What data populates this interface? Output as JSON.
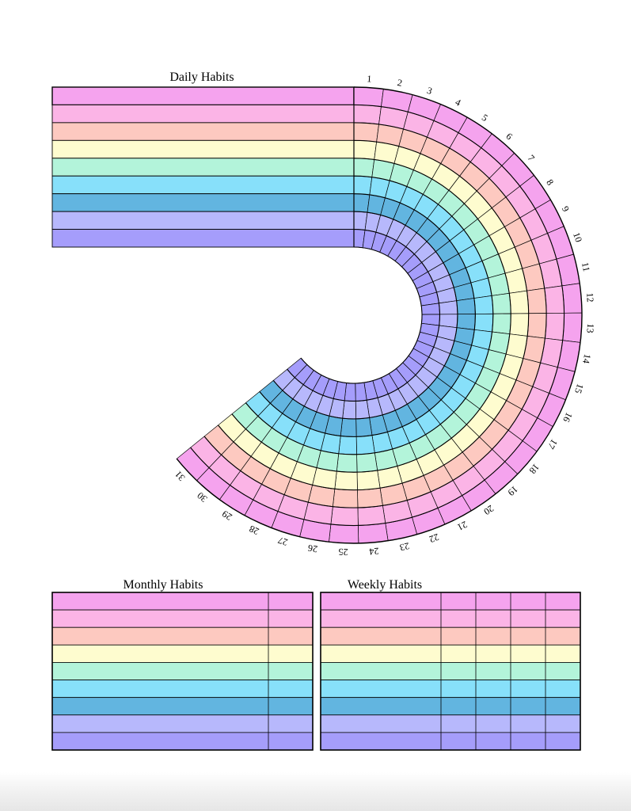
{
  "daily": {
    "title": "Daily Habits",
    "day_numbers": [
      "1",
      "2",
      "3",
      "4",
      "5",
      "6",
      "7",
      "8",
      "9",
      "10",
      "11",
      "12",
      "13",
      "14",
      "15",
      "16",
      "17",
      "18",
      "19",
      "20",
      "21",
      "22",
      "23",
      "24",
      "25",
      "26",
      "27",
      "28",
      "29",
      "30",
      "31"
    ]
  },
  "monthly": {
    "title": "Monthly Habits"
  },
  "weekly": {
    "title": "Weekly Habits"
  },
  "habit_rows": {
    "count": 9,
    "colors": [
      "#f5a3ee",
      "#fbb4e6",
      "#fdc9c0",
      "#fefccf",
      "#b3f4da",
      "#87e0fa",
      "#62b5e0",
      "#b7b8fc",
      "#a59dfb"
    ]
  }
}
